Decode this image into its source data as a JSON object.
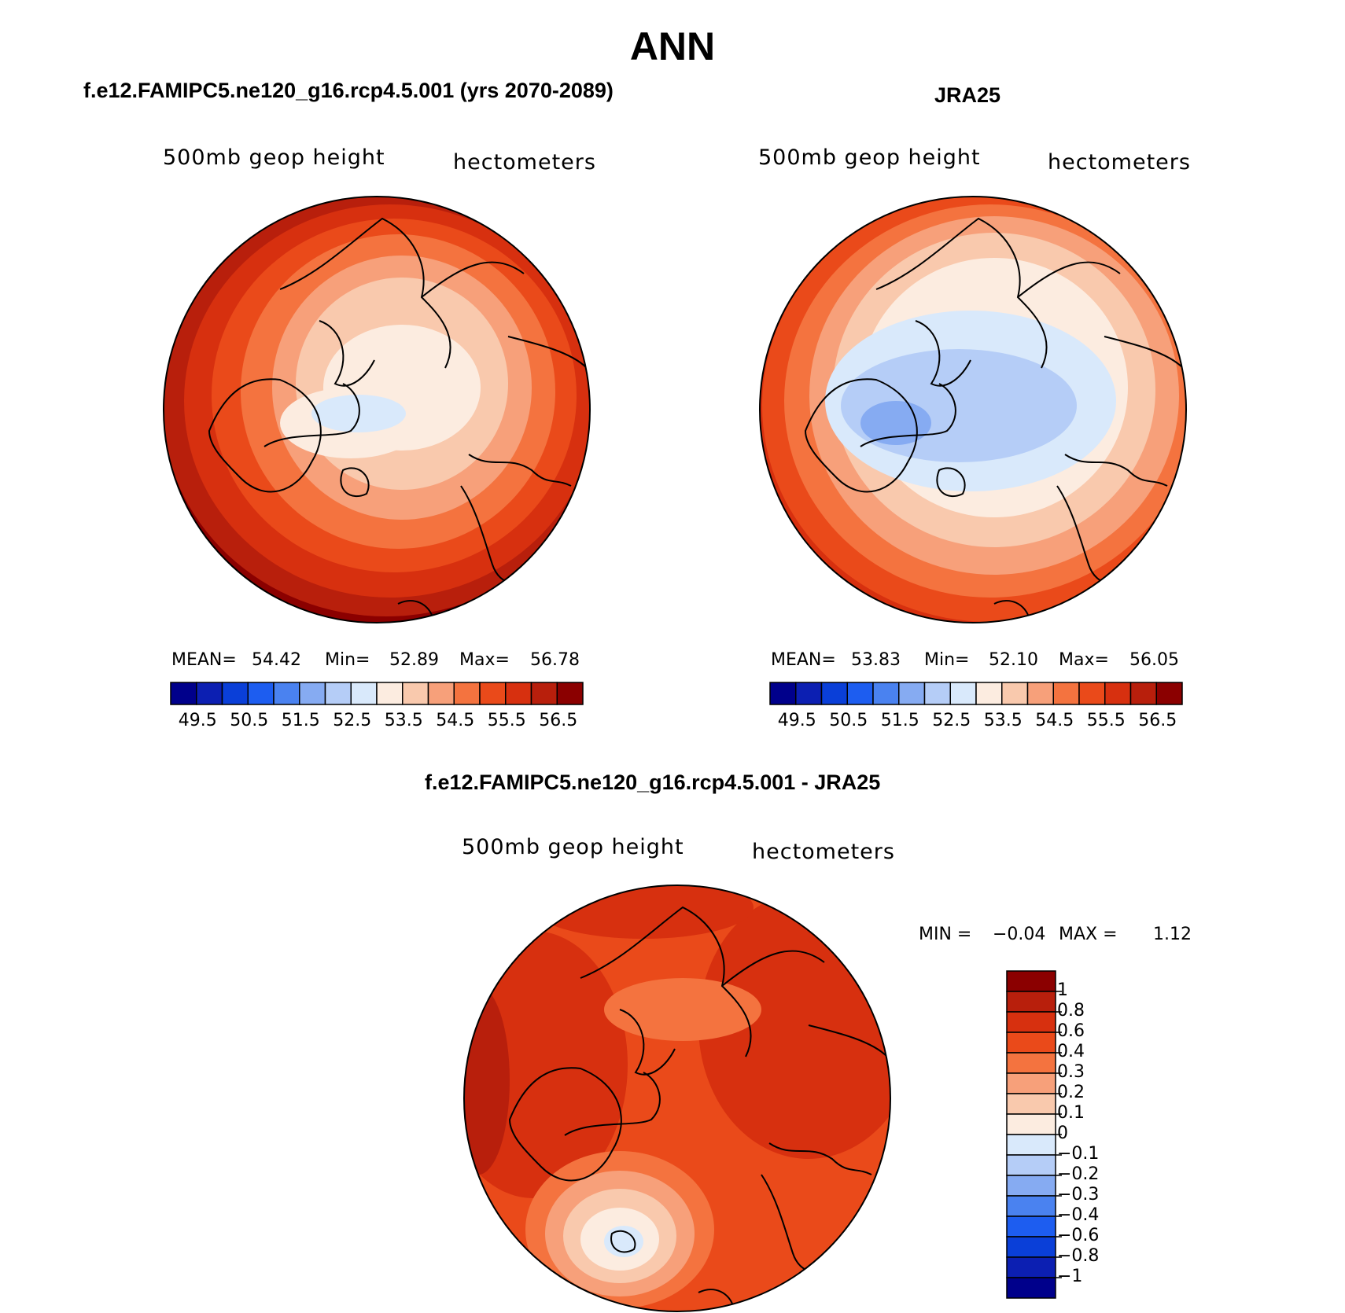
{
  "figure": {
    "title": "ANN",
    "panels": [
      {
        "id": "model",
        "title": "f.e12.FAMIPC5.ne120_g16.rcp4.5.001 (yrs 2070-2089)",
        "variable": "500mb  geop  height",
        "units": "hectometers",
        "stats": {
          "mean_label": "MEAN=",
          "mean": "54.42",
          "min_label": "Min=",
          "min": "52.89",
          "max_label": "Max=",
          "max": "56.78"
        }
      },
      {
        "id": "obs",
        "title": "JRA25",
        "variable": "500mb  geop  height",
        "units": "hectometers",
        "stats": {
          "mean_label": "MEAN=",
          "mean": "53.83",
          "min_label": "Min=",
          "min": "52.10",
          "max_label": "Max=",
          "max": "56.05"
        }
      },
      {
        "id": "diff",
        "title": "f.e12.FAMIPC5.ne120_g16.rcp4.5.001 - JRA25",
        "variable": "500mb  geop  height",
        "units": "hectometers",
        "stats": {
          "min_label": "MIN =",
          "min": "−0.04",
          "max_label": "MAX =",
          "max": "1.12"
        }
      }
    ]
  },
  "chart_data": [
    {
      "type": "heatmap",
      "projection": "north polar stereographic",
      "title": "f.e12.FAMIPC5.ne120_g16.rcp4.5.001 (yrs 2070-2089)",
      "variable": "500mb geop height",
      "units": "hectometers",
      "mean": 54.42,
      "min": 52.89,
      "max": 56.78,
      "contour_levels": [
        49.5,
        50.5,
        51.5,
        52.5,
        53.5,
        54.5,
        55.5,
        56.5
      ],
      "colorbar_tick_labels": [
        "49.5",
        "50.5",
        "51.5",
        "52.5",
        "53.5",
        "54.5",
        "55.5",
        "56.5"
      ]
    },
    {
      "type": "heatmap",
      "projection": "north polar stereographic",
      "title": "JRA25",
      "variable": "500mb geop height",
      "units": "hectometers",
      "mean": 53.83,
      "min": 52.1,
      "max": 56.05,
      "contour_levels": [
        49.5,
        50.5,
        51.5,
        52.5,
        53.5,
        54.5,
        55.5,
        56.5
      ],
      "colorbar_tick_labels": [
        "49.5",
        "50.5",
        "51.5",
        "52.5",
        "53.5",
        "54.5",
        "55.5",
        "56.5"
      ]
    },
    {
      "type": "heatmap",
      "projection": "north polar stereographic",
      "title": "f.e12.FAMIPC5.ne120_g16.rcp4.5.001 - JRA25",
      "variable": "500mb geop height",
      "units": "hectometers",
      "min": -0.04,
      "max": 1.12,
      "contour_levels": [
        -1,
        -0.8,
        -0.6,
        -0.4,
        -0.3,
        -0.2,
        -0.1,
        0,
        0.1,
        0.2,
        0.3,
        0.4,
        0.6,
        0.8,
        1
      ],
      "colorbar_tick_labels": [
        "1",
        "0.8",
        "0.6",
        "0.4",
        "0.3",
        "0.2",
        "0.1",
        "0",
        "−0.1",
        "−0.2",
        "−0.3",
        "−0.4",
        "−0.6",
        "−0.8",
        "−1"
      ]
    }
  ],
  "palettes": {
    "abs": [
      "#00008b",
      "#0c1fb2",
      "#0a3fd8",
      "#1d5df0",
      "#4a82f0",
      "#86abf2",
      "#b5cdf7",
      "#d9e9fb",
      "#fcece0",
      "#f9c9ad",
      "#f7a07a",
      "#f4733f",
      "#ea4a1a",
      "#d7300f",
      "#b81f0c",
      "#8b0000"
    ],
    "diff": [
      "#00008b",
      "#0c1fb2",
      "#0a3fd8",
      "#1d5df0",
      "#4a82f0",
      "#86abf2",
      "#b5cdf7",
      "#d9e9fb",
      "#fcece0",
      "#f9c9ad",
      "#f7a07a",
      "#f4733f",
      "#ea4a1a",
      "#d7300f",
      "#b81f0c",
      "#8b0000"
    ]
  }
}
